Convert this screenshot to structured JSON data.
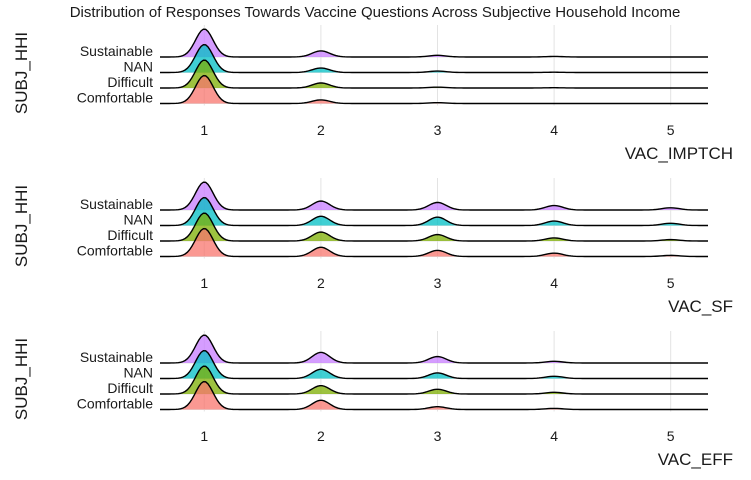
{
  "chart_data": {
    "type": "ridgeline",
    "title": "Distribution of Responses Towards Vaccine Questions Across Subjective Household Income",
    "colors": {
      "Comfortable": "#f8766d",
      "Difficult": "#7cae00",
      "NAN": "#00bfc4",
      "Sustainable": "#c77cff"
    },
    "panels": [
      {
        "xlabel": "VAC_IMPTCH",
        "ylabel": "SUBJ_HHI",
        "x_ticks": [
          1,
          2,
          3,
          4,
          5
        ],
        "xlim": [
          0.62,
          5.32
        ],
        "series": [
          {
            "name": "Comfortable",
            "peaks": [
              1.0,
              0.13,
              0.03,
              0.0,
              0.0
            ]
          },
          {
            "name": "Difficult",
            "peaks": [
              1.0,
              0.18,
              0.03,
              0.01,
              0.0
            ]
          },
          {
            "name": "NAN",
            "peaks": [
              1.0,
              0.16,
              0.05,
              0.01,
              0.0
            ]
          },
          {
            "name": "Sustainable",
            "peaks": [
              1.0,
              0.22,
              0.06,
              0.02,
              0.0
            ]
          }
        ]
      },
      {
        "xlabel": "VAC_SF",
        "ylabel": "SUBJ_HHI",
        "x_ticks": [
          1,
          2,
          3,
          4,
          5
        ],
        "xlim": [
          0.62,
          5.32
        ],
        "series": [
          {
            "name": "Comfortable",
            "peaks": [
              1.0,
              0.33,
              0.22,
              0.12,
              0.04
            ]
          },
          {
            "name": "Difficult",
            "peaks": [
              1.0,
              0.32,
              0.23,
              0.11,
              0.05
            ]
          },
          {
            "name": "NAN",
            "peaks": [
              1.0,
              0.33,
              0.3,
              0.16,
              0.08
            ]
          },
          {
            "name": "Sustainable",
            "peaks": [
              1.0,
              0.32,
              0.27,
              0.16,
              0.08
            ]
          }
        ]
      },
      {
        "xlabel": "VAC_EFF",
        "ylabel": "SUBJ_HHI",
        "x_ticks": [
          1,
          2,
          3,
          4,
          5
        ],
        "xlim": [
          0.62,
          5.32
        ],
        "series": [
          {
            "name": "Comfortable",
            "peaks": [
              1.0,
              0.33,
              0.1,
              0.04,
              0.0
            ]
          },
          {
            "name": "Difficult",
            "peaks": [
              1.0,
              0.3,
              0.17,
              0.06,
              0.0
            ]
          },
          {
            "name": "NAN",
            "peaks": [
              1.0,
              0.33,
              0.2,
              0.08,
              0.0
            ]
          },
          {
            "name": "Sustainable",
            "peaks": [
              1.0,
              0.38,
              0.23,
              0.06,
              0.0
            ]
          }
        ]
      }
    ]
  }
}
